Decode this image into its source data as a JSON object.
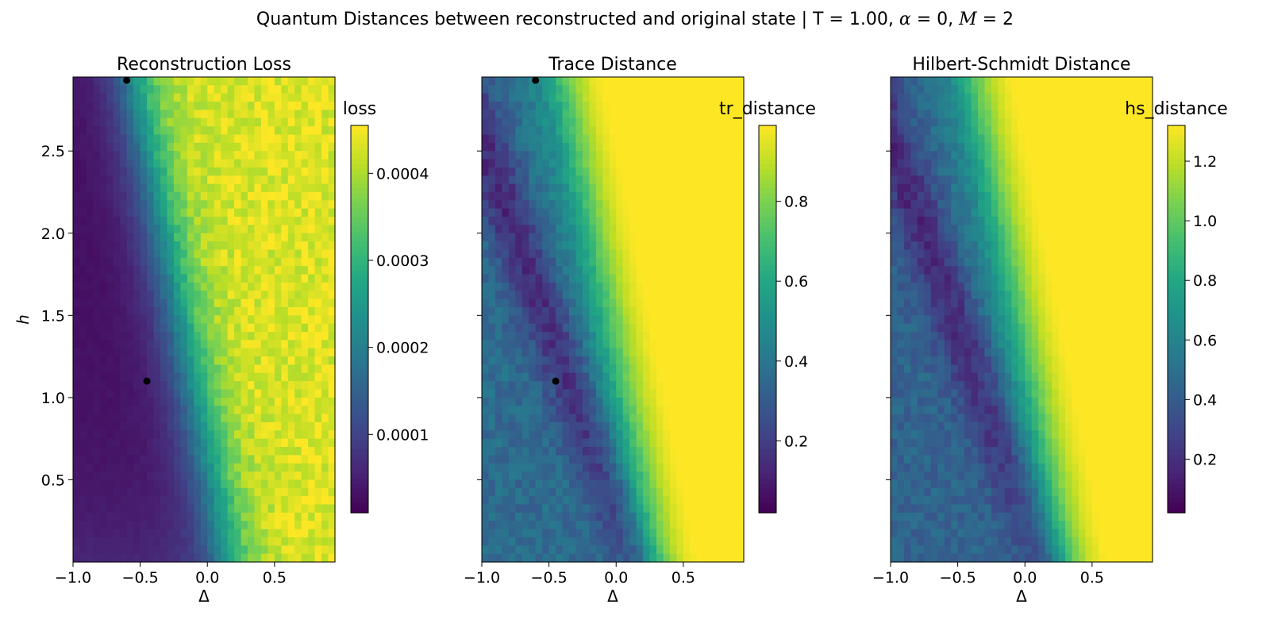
{
  "figure": {
    "title_prefix": "Quantum Distances between reconstructed and original state | T = 1.00, ",
    "title_alpha_symbol": "α",
    "title_alpha_value": " = 0, ",
    "title_M_symbol": "M",
    "title_M_value": " = 2"
  },
  "chart_data": [
    {
      "type": "heatmap",
      "title": "Reconstruction Loss",
      "xlabel": "Δ",
      "ylabel": "h",
      "xlim": [
        -1.0,
        0.95
      ],
      "ylim": [
        0.0,
        2.95
      ],
      "xticks": [
        "−1.0",
        "−0.5",
        "0.0",
        "0.5"
      ],
      "xtick_values": [
        -1.0,
        -0.5,
        0.0,
        0.5
      ],
      "yticks": [
        "0.5",
        "1.0",
        "1.5",
        "2.0",
        "2.5"
      ],
      "ytick_values": [
        0.5,
        1.0,
        1.5,
        2.0,
        2.5
      ],
      "colormap": "viridis",
      "colorbar_label": "loss",
      "colorbar_range": [
        1e-05,
        0.000455
      ],
      "colorbar_ticks": [
        "0.0001",
        "0.0002",
        "0.0003",
        "0.0004"
      ],
      "colorbar_tick_values": [
        0.0001,
        0.0002,
        0.0003,
        0.0004
      ],
      "boundary": {
        "d0": 0.15,
        "slope": -0.24
      },
      "markers": [
        {
          "x": -0.6,
          "y": 2.93
        },
        {
          "x": -0.45,
          "y": 1.1
        }
      ]
    },
    {
      "type": "heatmap",
      "title": "Trace Distance",
      "xlabel": "Δ",
      "ylabel": "",
      "xlim": [
        -1.0,
        0.95
      ],
      "ylim": [
        0.0,
        2.95
      ],
      "xticks": [
        "−1.0",
        "−0.5",
        "0.0",
        "0.5"
      ],
      "xtick_values": [
        -1.0,
        -0.5,
        0.0,
        0.5
      ],
      "yticks": [],
      "ytick_values": [
        0.5,
        1.0,
        1.5,
        2.0,
        2.5
      ],
      "colormap": "viridis",
      "colorbar_label": "tr_distance",
      "colorbar_range": [
        0.02,
        0.99
      ],
      "colorbar_ticks": [
        "0.2",
        "0.4",
        "0.6",
        "0.8"
      ],
      "colorbar_tick_values": [
        0.2,
        0.4,
        0.6,
        0.8
      ],
      "boundary": {
        "d0": 0.3,
        "slope": -0.24
      },
      "markers": [
        {
          "x": -0.6,
          "y": 2.93
        },
        {
          "x": -0.45,
          "y": 1.1
        }
      ]
    },
    {
      "type": "heatmap",
      "title": "Hilbert-Schmidt Distance",
      "xlabel": "Δ",
      "ylabel": "",
      "xlim": [
        -1.0,
        0.95
      ],
      "ylim": [
        0.0,
        2.95
      ],
      "xticks": [
        "−1.0",
        "−0.5",
        "0.0",
        "0.5"
      ],
      "xtick_values": [
        -1.0,
        -0.5,
        0.0,
        0.5
      ],
      "yticks": [],
      "ytick_values": [
        0.5,
        1.0,
        1.5,
        2.0,
        2.5
      ],
      "colormap": "viridis",
      "colorbar_label": "hs_distance",
      "colorbar_range": [
        0.02,
        1.32
      ],
      "colorbar_ticks": [
        "0.2",
        "0.4",
        "0.6",
        "0.8",
        "1.0",
        "1.2"
      ],
      "colorbar_tick_values": [
        0.2,
        0.4,
        0.6,
        0.8,
        1.0,
        1.2
      ],
      "boundary": {
        "d0": 0.3,
        "slope": -0.24
      },
      "markers": []
    }
  ]
}
